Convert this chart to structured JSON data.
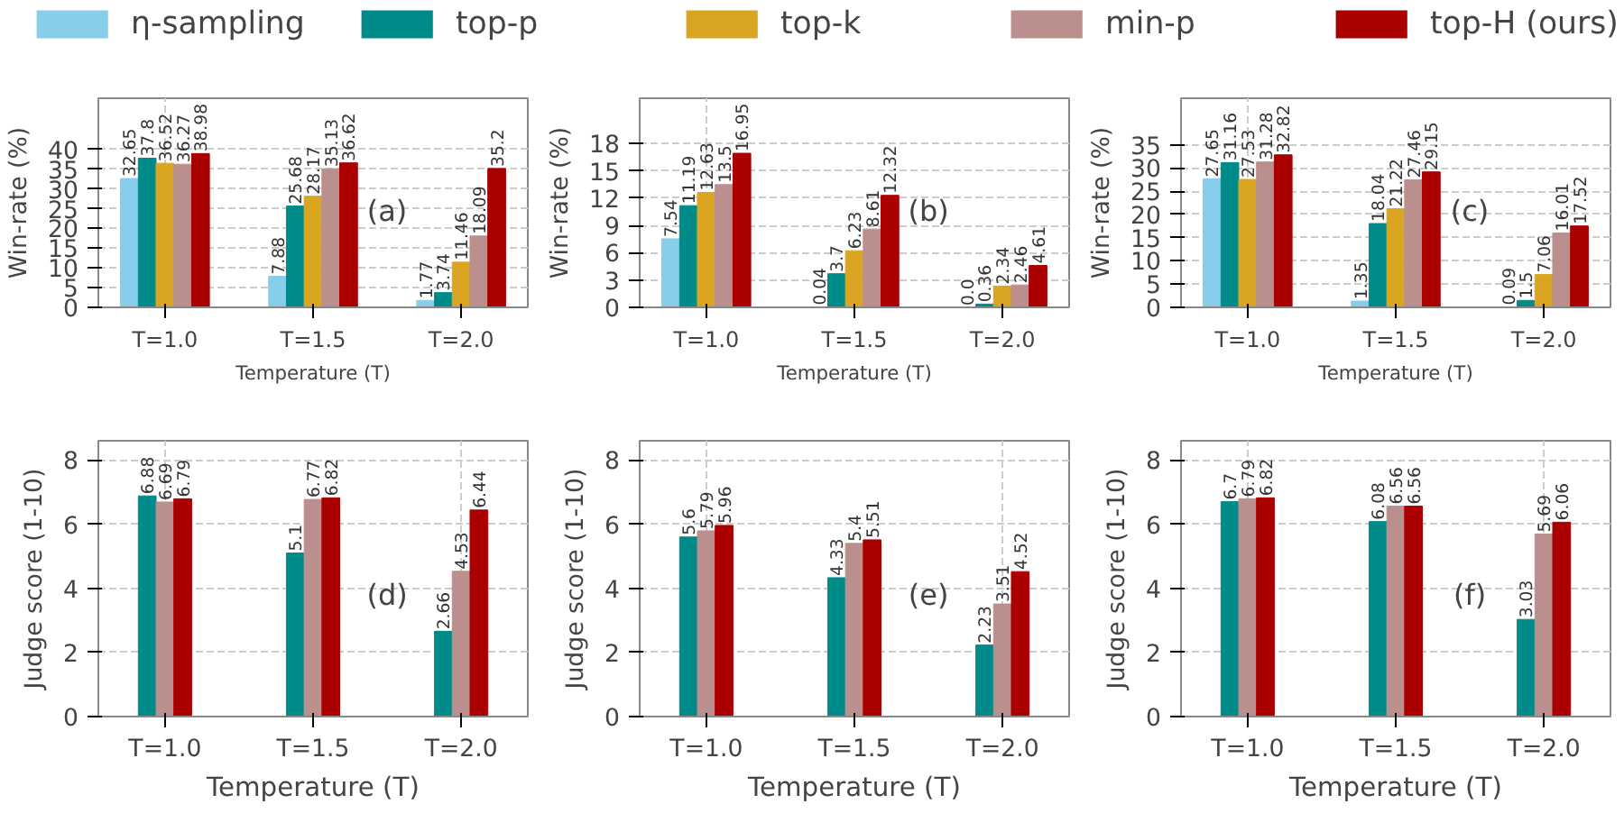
{
  "chart_data": [
    {
      "type": "bar",
      "xlabel": "Temperature (T)",
      "ylabel": "Win-rate (%)",
      "categories": [
        "T=1.0",
        "T=1.5",
        "T=2.0"
      ],
      "ylim": [
        0,
        53
      ],
      "yticks": [
        0,
        5,
        10,
        15,
        20,
        25,
        30,
        35,
        40
      ],
      "grid": true,
      "data_labels": true,
      "legend": "top",
      "annotations": [
        "(a)"
      ],
      "series": [
        {
          "name": "η-sampling",
          "color": "#87ceeb",
          "values": [
            32.65,
            7.88,
            1.77
          ]
        },
        {
          "name": "top-p",
          "color": "#008b8b",
          "values": [
            37.8,
            25.68,
            3.74
          ]
        },
        {
          "name": "top-k",
          "color": "#daa520",
          "values": [
            36.52,
            28.17,
            11.46
          ]
        },
        {
          "name": "min-p",
          "color": "#bc8f8f",
          "values": [
            36.27,
            35.13,
            18.09
          ]
        },
        {
          "name": "top-H (ours)",
          "color": "#aa0000",
          "values": [
            38.98,
            36.62,
            35.2
          ]
        }
      ]
    },
    {
      "type": "bar",
      "xlabel": "Temperature (T)",
      "ylabel": "Win-rate (%)",
      "categories": [
        "T=1.0",
        "T=1.5",
        "T=2.0"
      ],
      "ylim": [
        0,
        23
      ],
      "yticks": [
        0,
        3,
        6,
        9,
        12,
        15,
        18
      ],
      "grid": true,
      "data_labels": true,
      "annotations": [
        "(b)"
      ],
      "series": [
        {
          "color": "#87ceeb",
          "values": [
            7.54,
            0.04,
            0.0
          ],
          "value_labels": [
            "7.54",
            "0.04",
            "0.0"
          ]
        },
        {
          "color": "#008b8b",
          "values": [
            11.19,
            3.7,
            0.36
          ]
        },
        {
          "color": "#daa520",
          "values": [
            12.63,
            6.23,
            2.34
          ]
        },
        {
          "color": "#bc8f8f",
          "values": [
            13.5,
            8.61,
            2.46
          ]
        },
        {
          "color": "#aa0000",
          "values": [
            16.95,
            12.32,
            4.61
          ]
        }
      ]
    },
    {
      "type": "bar",
      "xlabel": "Temperature (T)",
      "ylabel": "Win-rate (%)",
      "categories": [
        "T=1.0",
        "T=1.5",
        "T=2.0"
      ],
      "ylim": [
        0,
        45
      ],
      "yticks": [
        0,
        5,
        10,
        15,
        20,
        25,
        30,
        35
      ],
      "grid": true,
      "data_labels": true,
      "annotations": [
        "(c)"
      ],
      "series": [
        {
          "color": "#87ceeb",
          "values": [
            27.65,
            1.35,
            0.09
          ]
        },
        {
          "color": "#008b8b",
          "values": [
            31.16,
            18.04,
            1.5
          ]
        },
        {
          "color": "#daa520",
          "values": [
            27.53,
            21.22,
            7.06
          ]
        },
        {
          "color": "#bc8f8f",
          "values": [
            31.28,
            27.46,
            16.01
          ]
        },
        {
          "color": "#aa0000",
          "values": [
            32.82,
            29.15,
            17.52
          ]
        }
      ]
    },
    {
      "type": "bar",
      "xlabel": "Temperature (T)",
      "ylabel": "Judge score (1-10)",
      "categories": [
        "T=1.0",
        "T=1.5",
        "T=2.0"
      ],
      "ylim": [
        0,
        8.6
      ],
      "yticks": [
        0,
        2,
        4,
        6,
        8
      ],
      "grid": true,
      "data_labels": true,
      "annotations": [
        "(d)"
      ],
      "series": [
        {
          "color": "#008b8b",
          "values": [
            6.88,
            5.1,
            2.66
          ]
        },
        {
          "color": "#bc8f8f",
          "values": [
            6.69,
            6.77,
            4.53
          ]
        },
        {
          "color": "#aa0000",
          "values": [
            6.79,
            6.82,
            6.44
          ]
        }
      ]
    },
    {
      "type": "bar",
      "xlabel": "Temperature (T)",
      "ylabel": "Judge score (1-10)",
      "categories": [
        "T=1.0",
        "T=1.5",
        "T=2.0"
      ],
      "ylim": [
        0,
        8.6
      ],
      "yticks": [
        0,
        2,
        4,
        6,
        8
      ],
      "grid": true,
      "data_labels": true,
      "annotations": [
        "(e)"
      ],
      "series": [
        {
          "color": "#008b8b",
          "values": [
            5.6,
            4.33,
            2.23
          ]
        },
        {
          "color": "#bc8f8f",
          "values": [
            5.79,
            5.4,
            3.51
          ]
        },
        {
          "color": "#aa0000",
          "values": [
            5.96,
            5.51,
            4.52
          ]
        }
      ]
    },
    {
      "type": "bar",
      "xlabel": "Temperature (T)",
      "ylabel": "Judge score (1-10)",
      "categories": [
        "T=1.0",
        "T=1.5",
        "T=2.0"
      ],
      "ylim": [
        0,
        8.6
      ],
      "yticks": [
        0,
        2,
        4,
        6,
        8
      ],
      "grid": true,
      "data_labels": true,
      "annotations": [
        "(f)"
      ],
      "series": [
        {
          "color": "#008b8b",
          "values": [
            6.7,
            6.08,
            3.03
          ]
        },
        {
          "color": "#bc8f8f",
          "values": [
            6.79,
            6.56,
            5.69
          ]
        },
        {
          "color": "#aa0000",
          "values": [
            6.82,
            6.56,
            6.06
          ]
        }
      ]
    }
  ]
}
